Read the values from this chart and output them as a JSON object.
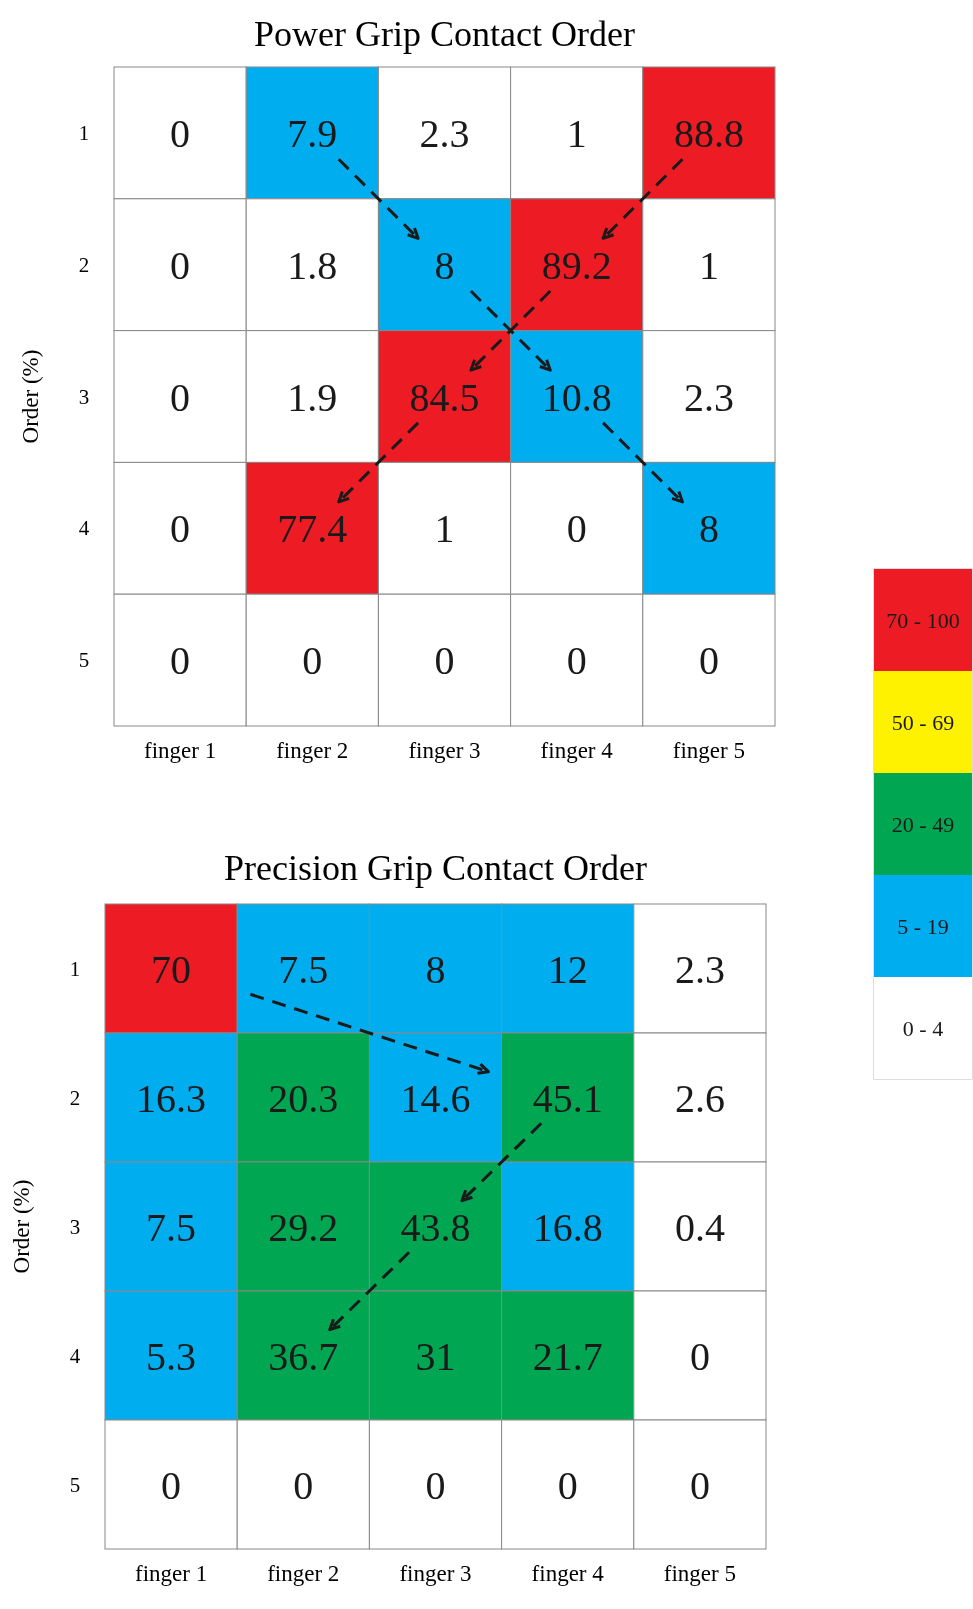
{
  "chart_data": [
    {
      "type": "heatmap",
      "title": "Power Grip Contact Order",
      "ylabel": "Order (%)",
      "categories": [
        "finger 1",
        "finger 2",
        "finger 3",
        "finger 4",
        "finger 5"
      ],
      "y_categories": [
        "1",
        "2",
        "3",
        "4",
        "5"
      ],
      "data_labels": true,
      "cells": [
        [
          0,
          7.9,
          2.3,
          1,
          88.8
        ],
        [
          0,
          1.8,
          8,
          89.2,
          1
        ],
        [
          0,
          1.9,
          84.5,
          10.8,
          2.3
        ],
        [
          0,
          77.4,
          1,
          0,
          8
        ],
        [
          0,
          0,
          0,
          0,
          0
        ]
      ]
    },
    {
      "type": "heatmap",
      "title": "Precision Grip Contact Order",
      "ylabel": "Order (%)",
      "categories": [
        "finger 1",
        "finger 2",
        "finger 3",
        "finger 4",
        "finger 5"
      ],
      "y_categories": [
        "1",
        "2",
        "3",
        "4",
        "5"
      ],
      "data_labels": true,
      "cells": [
        [
          70,
          7.5,
          8,
          12,
          2.3
        ],
        [
          16.3,
          20.3,
          14.6,
          45.1,
          2.6
        ],
        [
          7.5,
          29.2,
          43.8,
          16.8,
          0.4
        ],
        [
          5.3,
          36.7,
          31,
          21.7,
          0
        ],
        [
          0,
          0,
          0,
          0,
          0
        ]
      ]
    },
    {
      "type": "other",
      "categories": [
        "70 - 100",
        "50 - 69",
        "20 - 49",
        "5 - 19",
        "0 - 4"
      ],
      "colors": [
        "#ed1c24",
        "#fff200",
        "#00a651",
        "#00aeef",
        "#ffffff"
      ]
    }
  ]
}
